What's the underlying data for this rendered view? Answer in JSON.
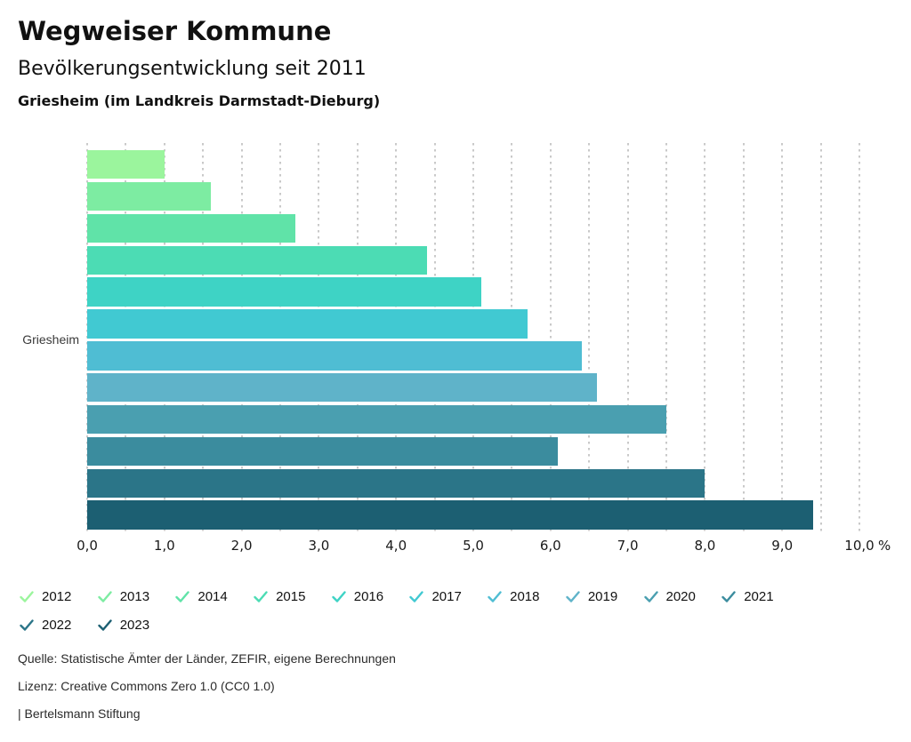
{
  "header": {
    "title": "Wegweiser Kommune",
    "subtitle": "Bevölkerungsentwicklung seit 2011",
    "location": "Griesheim (im Landkreis Darmstadt-Dieburg)"
  },
  "chart_data": {
    "type": "bar",
    "orientation": "horizontal",
    "group_label": "Griesheim",
    "categories": [
      "2012",
      "2013",
      "2014",
      "2015",
      "2016",
      "2017",
      "2018",
      "2019",
      "2020",
      "2021",
      "2022",
      "2023"
    ],
    "values": [
      1.0,
      1.6,
      2.7,
      4.4,
      5.1,
      5.7,
      6.4,
      6.6,
      7.5,
      6.1,
      8.0,
      9.4
    ],
    "colors": [
      "#9BF59D",
      "#7DECA2",
      "#60E3A8",
      "#4CDCB4",
      "#3ED3C5",
      "#41C9D2",
      "#4FBDD3",
      "#5FB3C9",
      "#4A9FB0",
      "#3B8C9E",
      "#2B7588",
      "#1C5F72"
    ],
    "xlim": [
      0,
      10
    ],
    "gridline_step": 0.5,
    "grid": "dotted-vertical",
    "x_unit": "%",
    "x_ticks": [
      {
        "v": 0,
        "label": "0,0"
      },
      {
        "v": 1,
        "label": "1,0"
      },
      {
        "v": 2,
        "label": "2,0"
      },
      {
        "v": 3,
        "label": "3,0"
      },
      {
        "v": 4,
        "label": "4,0"
      },
      {
        "v": 5,
        "label": "5,0"
      },
      {
        "v": 6,
        "label": "6,0"
      },
      {
        "v": 7,
        "label": "7,0"
      },
      {
        "v": 8,
        "label": "8,0"
      },
      {
        "v": 9,
        "label": "9,0"
      },
      {
        "v": 10,
        "label": "10,0"
      }
    ],
    "legend_position": "bottom"
  },
  "footer": {
    "source": "Quelle: Statistische Ämter der Länder, ZEFIR, eigene Berechnungen",
    "license": "Lizenz: Creative Commons Zero 1.0 (CC0 1.0)",
    "attribution": "| Bertelsmann Stiftung"
  }
}
